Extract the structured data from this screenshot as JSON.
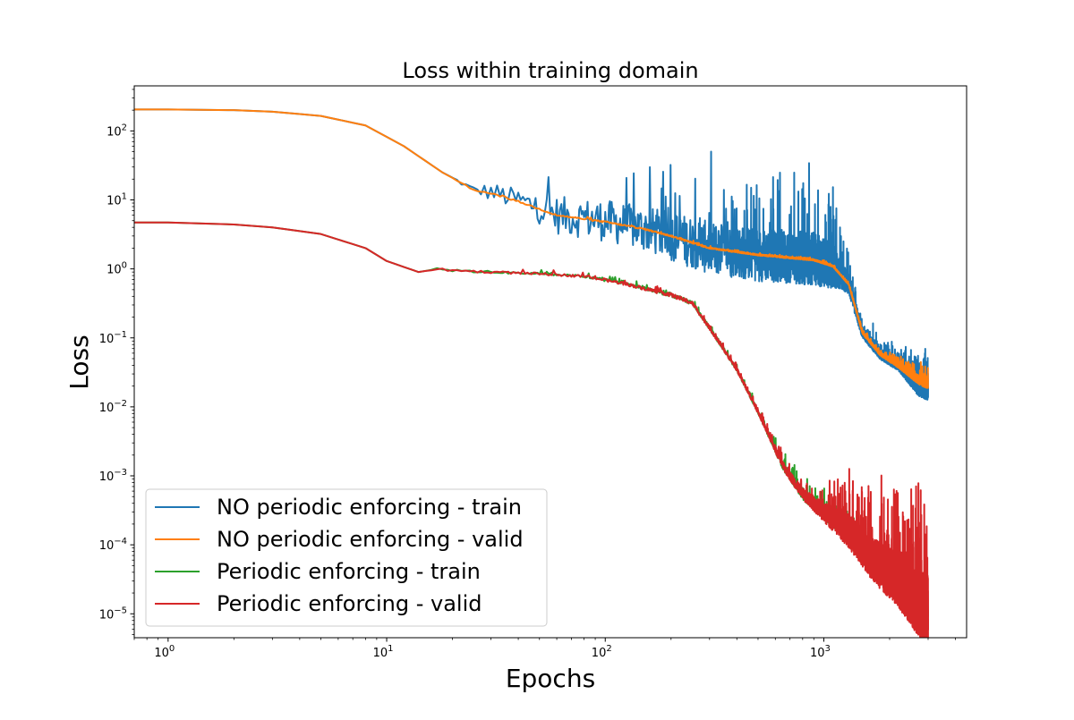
{
  "chart_data": {
    "type": "line",
    "title": "Loss within training domain",
    "xlabel": "Epochs",
    "ylabel": "Loss",
    "x_scale": "log",
    "y_scale": "log",
    "xlim": [
      0.7,
      4500
    ],
    "ylim": [
      4.5e-06,
      450
    ],
    "x_ticks": [
      {
        "value": 1,
        "base": "10",
        "exp": "0"
      },
      {
        "value": 10,
        "base": "10",
        "exp": "1"
      },
      {
        "value": 100,
        "base": "10",
        "exp": "2"
      },
      {
        "value": 1000,
        "base": "10",
        "exp": "3"
      }
    ],
    "y_ticks": [
      {
        "value": 1e-05,
        "base": "10",
        "exp": "−5"
      },
      {
        "value": 0.0001,
        "base": "10",
        "exp": "−4"
      },
      {
        "value": 0.001,
        "base": "10",
        "exp": "−3"
      },
      {
        "value": 0.01,
        "base": "10",
        "exp": "−2"
      },
      {
        "value": 0.1,
        "base": "10",
        "exp": "−1"
      },
      {
        "value": 1,
        "base": "10",
        "exp": "0"
      },
      {
        "value": 10,
        "base": "10",
        "exp": "1"
      },
      {
        "value": 100,
        "base": "10",
        "exp": "2"
      }
    ],
    "grid": false,
    "legend_position": "lower-left",
    "series": [
      {
        "name": "NO periodic enforcing - train",
        "color": "#1f77b4",
        "x": [
          0.7,
          1,
          2,
          3,
          5,
          8,
          12,
          18,
          25,
          30,
          40,
          60,
          100,
          150,
          200,
          300,
          500,
          700,
          900,
          1100,
          1300,
          1500,
          1800,
          2200,
          2700,
          3000
        ],
        "y": [
          205,
          205,
          200,
          190,
          165,
          120,
          60,
          25,
          14,
          13,
          10,
          6,
          5,
          3.8,
          3,
          2,
          1.6,
          1.5,
          1.4,
          1.1,
          0.6,
          0.12,
          0.06,
          0.04,
          0.02,
          0.018
        ],
        "noise": [
          0,
          0,
          0,
          0,
          0,
          0,
          0,
          0,
          0.1,
          0.25,
          0.3,
          0.5,
          0.55,
          0.6,
          0.65,
          0.7,
          0.7,
          0.7,
          0.7,
          0.6,
          0.25,
          0.15,
          0.15,
          0.15,
          0.25,
          0.3
        ]
      },
      {
        "name": "NO periodic enforcing - valid",
        "color": "#ff7f0e",
        "x": [
          0.7,
          1,
          2,
          3,
          5,
          8,
          12,
          18,
          25,
          30,
          40,
          60,
          100,
          150,
          200,
          300,
          500,
          700,
          900,
          1100,
          1300,
          1500,
          1800,
          2200,
          2700,
          3000
        ],
        "y": [
          205,
          205,
          200,
          190,
          165,
          120,
          60,
          25,
          14,
          12.5,
          9.5,
          6,
          4.8,
          3.8,
          3,
          2,
          1.6,
          1.45,
          1.35,
          1.1,
          0.6,
          0.12,
          0.06,
          0.04,
          0.025,
          0.022
        ],
        "noise": [
          0,
          0,
          0,
          0,
          0,
          0,
          0,
          0,
          0.02,
          0.02,
          0.02,
          0.02,
          0.02,
          0.02,
          0.02,
          0.02,
          0.02,
          0.02,
          0.02,
          0.02,
          0.02,
          0.03,
          0.05,
          0.07,
          0.12,
          0.15
        ]
      },
      {
        "name": "Periodic enforcing - train",
        "color": "#2ca02c",
        "x": [
          0.7,
          1,
          2,
          3,
          5,
          8,
          10,
          14,
          17,
          20,
          30,
          50,
          80,
          120,
          200,
          250,
          300,
          400,
          500,
          650,
          800,
          1000,
          1300,
          1700,
          2200,
          2700,
          3000
        ],
        "y": [
          4.7,
          4.7,
          4.4,
          4.0,
          3.2,
          2.0,
          1.3,
          0.9,
          1.0,
          0.95,
          0.9,
          0.85,
          0.78,
          0.62,
          0.42,
          0.32,
          0.14,
          0.035,
          0.0085,
          0.0014,
          0.00055,
          0.0003,
          0.00015,
          5e-05,
          2.5e-05,
          1.2e-05,
          1e-05
        ],
        "noise": [
          0,
          0,
          0,
          0,
          0,
          0,
          0,
          0,
          0.02,
          0.03,
          0.03,
          0.03,
          0.03,
          0.04,
          0.05,
          0.05,
          0.05,
          0.05,
          0.05,
          0.1,
          0.15,
          0.2,
          0.2,
          0.2,
          0.15,
          0.15,
          0.1
        ]
      },
      {
        "name": "Periodic enforcing - valid",
        "color": "#d62728",
        "x": [
          0.7,
          1,
          2,
          3,
          5,
          8,
          10,
          14,
          17,
          20,
          30,
          50,
          80,
          120,
          200,
          250,
          300,
          400,
          500,
          650,
          800,
          1000,
          1300,
          1700,
          2200,
          2700,
          3000
        ],
        "y": [
          4.7,
          4.7,
          4.4,
          4.0,
          3.2,
          2.0,
          1.3,
          0.9,
          1.0,
          0.95,
          0.9,
          0.85,
          0.78,
          0.62,
          0.42,
          0.32,
          0.14,
          0.035,
          0.0085,
          0.0014,
          0.00055,
          0.0003,
          0.00016,
          6e-05,
          3e-05,
          1.4e-05,
          1.2e-05
        ],
        "noise": [
          0,
          0,
          0,
          0,
          0,
          0,
          0,
          0,
          0.02,
          0.03,
          0.03,
          0.03,
          0.03,
          0.04,
          0.05,
          0.05,
          0.05,
          0.05,
          0.05,
          0.1,
          0.15,
          0.25,
          0.45,
          0.6,
          0.7,
          0.85,
          0.9
        ]
      }
    ]
  }
}
